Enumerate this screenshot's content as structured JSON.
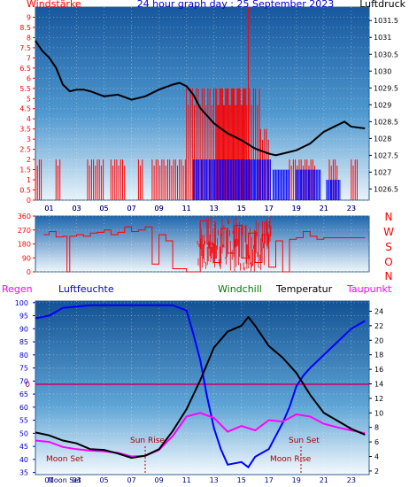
{
  "header": {
    "left_label": "Windstärke",
    "center_title": "24 hour graph day : 25 September 2023",
    "right_label": "Luftdruck"
  },
  "middle": {
    "direction_letters": [
      "N",
      "W",
      "S",
      "O",
      "N"
    ]
  },
  "bottom_header": {
    "regen": "Regen",
    "luftfeuchte": "Luftfeuchte",
    "windchill": "Windchill",
    "temperatur": "Temperatur",
    "taupunkt": "Taupunkt"
  },
  "annotations": {
    "sun_rise": "Sun Rise",
    "sun_set": "Sun Set",
    "moon_set": "Moon Set",
    "moon_rise": "Moon Rise",
    "moon_set_bottom": "Moon Set"
  },
  "colors": {
    "wind_red": "#ff0000",
    "wind_blue": "#0000ff",
    "pressure": "#000000",
    "humidity": "#0000ff",
    "temperature": "#000000",
    "dewpoint": "#ff00ff",
    "rain_line": "#cc0066",
    "label_green": "#007700",
    "sky_top": "#1a5fb4",
    "sky_bottom": "#ffffff"
  },
  "chart_data": [
    {
      "type": "bar",
      "title": "24 hour graph day : 25 September 2023",
      "x_ticks": [
        "01",
        "03",
        "05",
        "07",
        "09",
        "11",
        "13",
        "15",
        "17",
        "19",
        "21",
        "23"
      ],
      "y_left_label": "Windstärke",
      "y_left_ticks": [
        "0",
        "0.5",
        "1",
        "1.5",
        "2",
        "2.5",
        "3",
        "3.5",
        "4",
        "4.5",
        "5",
        "5.5",
        "6",
        "6.5",
        "7",
        "7.5",
        "8",
        "8.5",
        "9"
      ],
      "y_left_range": [
        0,
        9.5
      ],
      "y_right_label": "Luftdruck",
      "y_right_ticks": [
        "1026.5",
        "1027",
        "1027.5",
        "1028",
        "1028.5",
        "1029",
        "1029.5",
        "1030",
        "1030.5",
        "1031",
        "1031.5"
      ],
      "y_right_range": [
        1026.17,
        1031.9
      ],
      "x_range": [
        0,
        24.3
      ],
      "pressure_series": {
        "x": [
          0,
          0.5,
          1,
          1.5,
          2,
          2.5,
          3,
          3.5,
          4,
          5,
          6,
          7,
          8,
          9,
          10,
          10.5,
          11,
          11.5,
          12,
          13,
          14,
          15,
          16,
          17,
          17.5,
          18,
          19,
          20,
          21,
          22,
          22.5,
          23,
          24
        ],
        "y": [
          1030.9,
          1030.6,
          1030.4,
          1030.1,
          1029.6,
          1029.4,
          1029.45,
          1029.45,
          1029.4,
          1029.25,
          1029.3,
          1029.15,
          1029.25,
          1029.45,
          1029.6,
          1029.65,
          1029.55,
          1029.3,
          1028.9,
          1028.45,
          1028.15,
          1027.95,
          1027.7,
          1027.55,
          1027.5,
          1027.55,
          1027.65,
          1027.85,
          1028.2,
          1028.4,
          1028.5,
          1028.35,
          1028.3
        ]
      },
      "wind_red_spans": [
        [
          0.0,
          0.5,
          2.0
        ],
        [
          1.5,
          1.9,
          2.0
        ],
        [
          3.8,
          5.0,
          2.0
        ],
        [
          5.5,
          6.5,
          2.0
        ],
        [
          7.5,
          7.8,
          2.0
        ],
        [
          8.5,
          11.0,
          2.0
        ],
        [
          11.0,
          15.5,
          5.5
        ],
        [
          13.2,
          15.4,
          5.5
        ],
        [
          15.5,
          15.6,
          9.5
        ],
        [
          15.6,
          16.4,
          5.5
        ],
        [
          16.4,
          17.0,
          3.5
        ],
        [
          18.5,
          20.4,
          2.0
        ],
        [
          21.4,
          22.0,
          2.0
        ],
        [
          23.0,
          23.5,
          2.0
        ]
      ],
      "wind_blue_spans": [
        [
          11.5,
          17.2,
          2.0
        ],
        [
          17.3,
          18.5,
          1.5
        ],
        [
          19.0,
          20.8,
          1.5
        ],
        [
          21.2,
          22.2,
          1.0
        ]
      ]
    },
    {
      "type": "line",
      "y_ticks": [
        "0",
        "90",
        "180",
        "270",
        "360"
      ],
      "y_range": [
        0,
        360
      ],
      "x_ticks": [
        "01",
        "03",
        "05",
        "07",
        "09",
        "11",
        "13",
        "15",
        "17",
        "19",
        "21",
        "23"
      ],
      "x_range": [
        0,
        24.3
      ],
      "direction_series": {
        "x": [
          0.6,
          1.0,
          1.5,
          2.0,
          2.3,
          2.5,
          3.0,
          3.5,
          4.0,
          4.5,
          5.0,
          5.5,
          6.0,
          6.5,
          7.0,
          7.5,
          8.0,
          8.5,
          9.0,
          9.5,
          10.0,
          11.0,
          11.8,
          12.0,
          12.5,
          13.0,
          13.5,
          14.0,
          14.5,
          15.0,
          15.5,
          16.0,
          16.5,
          17.0,
          17.5,
          18.0,
          18.5,
          19.0,
          19.5,
          20.0,
          20.5,
          21.0,
          22.0,
          23.0,
          24.0
        ],
        "y": [
          240,
          260,
          225,
          230,
          0,
          230,
          240,
          230,
          250,
          255,
          270,
          240,
          255,
          290,
          260,
          270,
          290,
          50,
          240,
          200,
          20,
          0,
          0,
          330,
          180,
          60,
          280,
          120,
          300,
          90,
          250,
          60,
          240,
          30,
          200,
          0,
          210,
          220,
          260,
          230,
          210,
          220,
          220,
          220,
          220
        ]
      }
    },
    {
      "type": "line",
      "x_ticks": [
        "01",
        "03",
        "05",
        "07",
        "09",
        "11",
        "13",
        "15",
        "17",
        "19",
        "21",
        "23"
      ],
      "x_range": [
        0,
        24.3
      ],
      "y_left_label": "Luftfeuchte",
      "y_left_ticks": [
        "35",
        "40",
        "45",
        "50",
        "55",
        "60",
        "65",
        "70",
        "75",
        "80",
        "85",
        "90",
        "95",
        "100"
      ],
      "y_left_range": [
        34.2,
        100.6
      ],
      "y_right_label": "Temperatur",
      "y_right_ticks": [
        "2",
        "4",
        "6",
        "8",
        "10",
        "12",
        "14",
        "16",
        "18",
        "20",
        "22",
        "24"
      ],
      "y_right_range": [
        1.5,
        25.4
      ],
      "rain_label": "0",
      "humidity_series": {
        "x": [
          0,
          1,
          2,
          3,
          4,
          5,
          6,
          7,
          8,
          9,
          9.5,
          10,
          10.5,
          11,
          11.5,
          12,
          12.5,
          13,
          13.5,
          14,
          15,
          15.5,
          16,
          17,
          17.5,
          18,
          18.5,
          19,
          19.5,
          20,
          21,
          22,
          23,
          24
        ],
        "y": [
          94,
          95,
          98,
          98.5,
          99,
          99,
          99,
          99,
          99,
          99,
          99,
          99,
          98,
          97,
          88,
          78,
          64,
          52,
          44,
          38,
          39,
          37,
          41,
          44,
          49,
          54,
          60,
          68,
          72,
          75,
          80,
          85,
          90,
          93
        ]
      },
      "temperature_series": {
        "x": [
          0,
          1,
          2,
          3,
          4,
          5,
          6,
          7,
          8,
          9,
          10,
          11,
          12,
          13,
          14,
          15,
          15.5,
          16,
          17,
          18,
          19,
          20,
          21,
          22,
          23,
          24
        ],
        "y": [
          7.3,
          6.9,
          6.2,
          5.8,
          5.0,
          4.9,
          4.4,
          3.8,
          4.1,
          5.0,
          7.5,
          10.5,
          14.5,
          19.0,
          21.2,
          22.0,
          23.2,
          22.0,
          19.2,
          17.6,
          15.5,
          12.5,
          10.0,
          8.9,
          7.8,
          7.0
        ]
      },
      "dewpoint_series": {
        "x": [
          0,
          1,
          2,
          3,
          4,
          5,
          6,
          7,
          8,
          9,
          10,
          11,
          12,
          13,
          14,
          15,
          16,
          17,
          18,
          19,
          20,
          21,
          22,
          23,
          24
        ],
        "y": [
          6.2,
          6.0,
          5.3,
          5.0,
          4.8,
          4.7,
          4.5,
          4.0,
          4.1,
          4.9,
          6.8,
          9.5,
          10.0,
          9.3,
          7.4,
          8.2,
          7.6,
          9.0,
          8.8,
          9.8,
          9.5,
          8.5,
          8.0,
          7.6,
          7.2
        ]
      }
    }
  ]
}
